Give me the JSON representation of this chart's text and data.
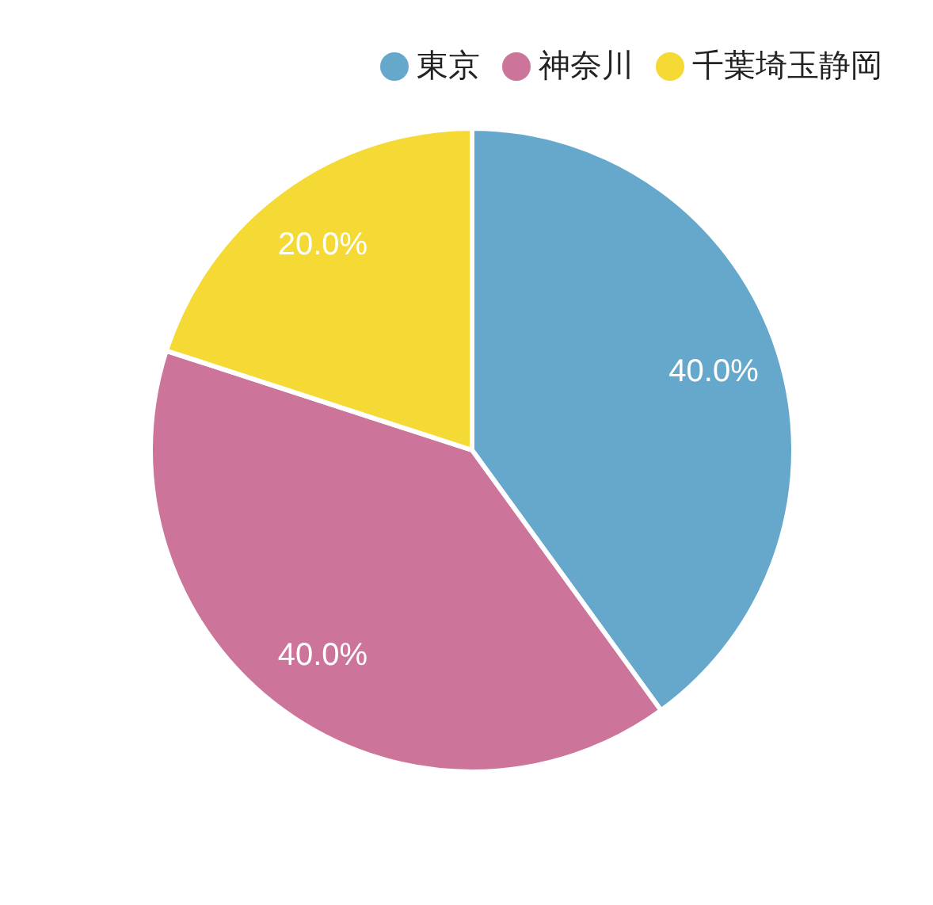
{
  "chart_data": {
    "type": "pie",
    "categories": [
      "東京",
      "神奈川",
      "千葉埼玉静岡"
    ],
    "values": [
      40,
      40,
      20
    ],
    "colors": [
      "#66a8cc",
      "#cc7499",
      "#f5d935"
    ],
    "value_labels": [
      "40.0%",
      "40.0%",
      "20.0%"
    ],
    "legend": "top right"
  }
}
